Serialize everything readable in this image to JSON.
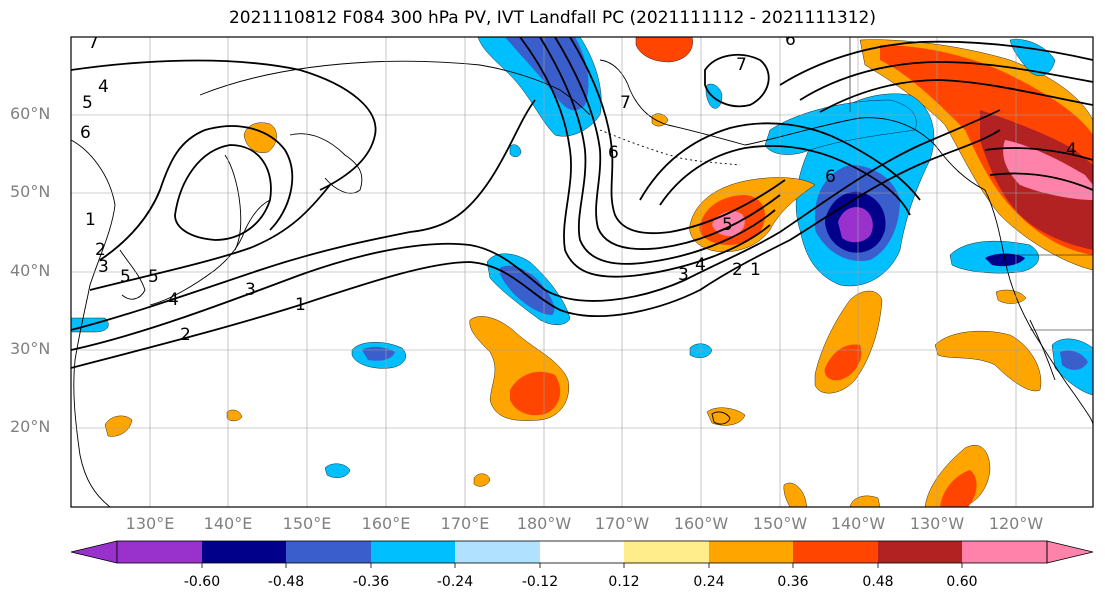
{
  "title": "2021110812 F084 300 hPa PV, IVT Landfall PC (2021111112 - 2021111312)",
  "lat_labels": [
    "60°N",
    "50°N",
    "40°N",
    "30°N",
    "20°N"
  ],
  "lon_labels": [
    "130°E",
    "140°E",
    "150°E",
    "160°E",
    "170°E",
    "180°W",
    "170°W",
    "160°W",
    "150°W",
    "140°W",
    "130°W",
    "120°W"
  ],
  "contour_labels": [
    "1",
    "2",
    "3",
    "4",
    "5",
    "6",
    "7",
    "4",
    "5",
    "6",
    "7",
    "6",
    "5",
    "4",
    "3",
    "2",
    "1",
    "1",
    "2",
    "3",
    "5",
    "6",
    "7",
    "4"
  ],
  "colorbar": {
    "colors": [
      "#9932CC",
      "#00008B",
      "#3A5FCD",
      "#00BFFF",
      "#B0E2FF",
      "#FFFFFF",
      "#FFEC8B",
      "#FFA500",
      "#FF4500",
      "#B22222",
      "#FF82AB"
    ],
    "tick_labels": [
      "-0.60",
      "-0.48",
      "-0.36",
      "-0.24",
      "-0.12",
      "0.12",
      "0.24",
      "0.36",
      "0.48",
      "0.60"
    ]
  }
}
